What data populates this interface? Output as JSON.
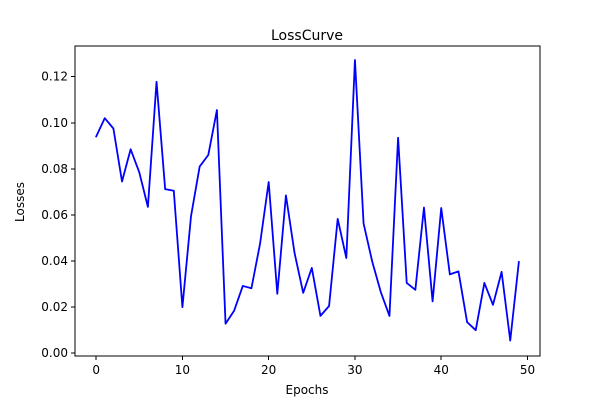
{
  "chart_data": {
    "type": "line",
    "title": "LossCurve",
    "xlabel": "Epochs",
    "ylabel": "Losses",
    "xlim": [
      -2.45,
      51.45
    ],
    "ylim": [
      -0.0012,
      0.1333
    ],
    "xticks": [
      0,
      10,
      20,
      30,
      40,
      50
    ],
    "xtick_labels": [
      "0",
      "10",
      "20",
      "30",
      "40",
      "50"
    ],
    "yticks": [
      0.0,
      0.02,
      0.04,
      0.06,
      0.08,
      0.1,
      0.12
    ],
    "ytick_labels": [
      "0.00",
      "0.02",
      "0.04",
      "0.06",
      "0.08",
      "0.10",
      "0.12"
    ],
    "grid": false,
    "series": [
      {
        "color": "#0000ff",
        "x": [
          0,
          1,
          2,
          3,
          4,
          5,
          6,
          7,
          8,
          9,
          10,
          11,
          12,
          13,
          14,
          15,
          16,
          17,
          18,
          19,
          20,
          21,
          22,
          23,
          24,
          25,
          26,
          27,
          28,
          29,
          30,
          31,
          32,
          33,
          34,
          35,
          36,
          37,
          38,
          39,
          40,
          41,
          42,
          43,
          44,
          45,
          46,
          47,
          48,
          49
        ],
        "values": [
          0.094,
          0.102,
          0.0975,
          0.0745,
          0.0885,
          0.0785,
          0.0635,
          0.1178,
          0.0712,
          0.0705,
          0.02,
          0.0595,
          0.081,
          0.086,
          0.1055,
          0.0128,
          0.0185,
          0.0292,
          0.0282,
          0.0475,
          0.0743,
          0.0258,
          0.0685,
          0.0435,
          0.0262,
          0.037,
          0.0162,
          0.0205,
          0.0583,
          0.0413,
          0.1272,
          0.0563,
          0.0398,
          0.0265,
          0.0162,
          0.0935,
          0.0305,
          0.0275,
          0.0632,
          0.0225,
          0.063,
          0.0342,
          0.0355,
          0.0135,
          0.01,
          0.0305,
          0.021,
          0.0353,
          0.0055,
          0.0397
        ]
      }
    ]
  }
}
